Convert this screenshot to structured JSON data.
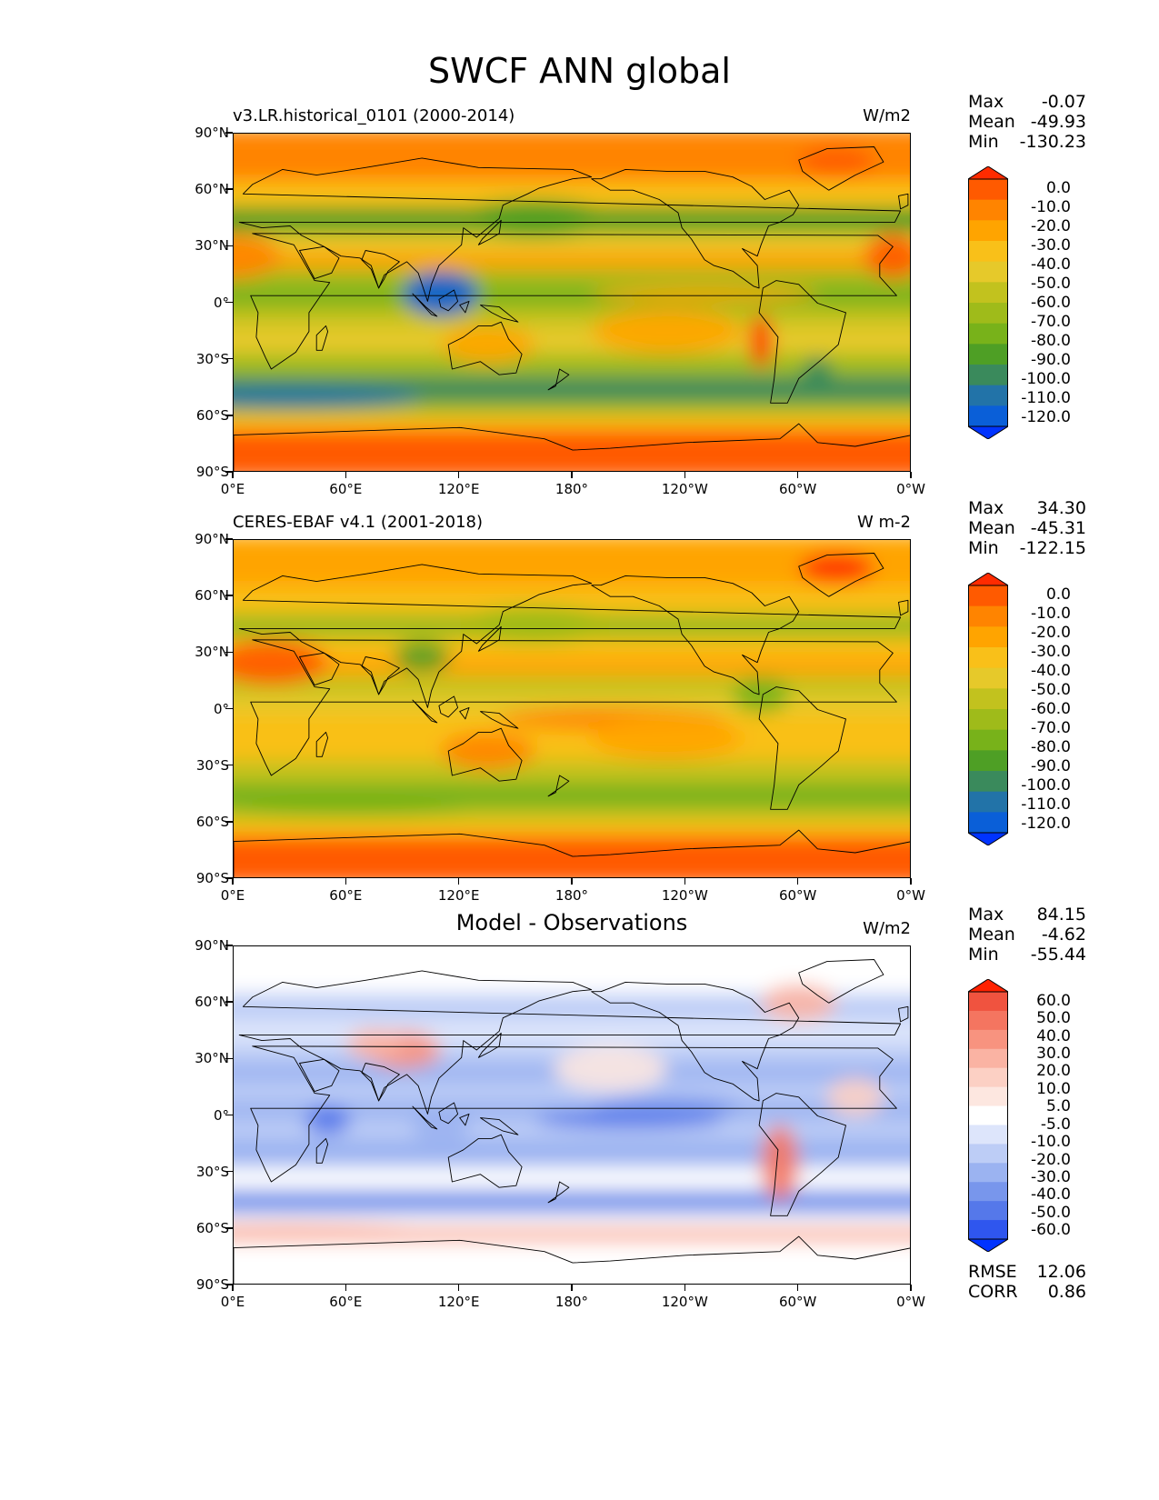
{
  "figure_title": "SWCF ANN global",
  "lat_ticks": [
    "90°N",
    "60°N",
    "30°N",
    "0°",
    "30°S",
    "60°S",
    "90°S"
  ],
  "lon_ticks": [
    "0°E",
    "60°E",
    "120°E",
    "180°",
    "120°W",
    "60°W",
    "0°W"
  ],
  "panels": [
    {
      "title_left": "v3.LR.historical_0101 (2000-2014)",
      "title_center": "",
      "units": "W/m2",
      "stats": [
        {
          "label": "Max",
          "value": "-0.07"
        },
        {
          "label": "Mean",
          "value": "-49.93"
        },
        {
          "label": "Min",
          "value": "-130.23"
        }
      ],
      "colorbar_levels": [
        "0.0",
        "-10.0",
        "-20.0",
        "-30.0",
        "-40.0",
        "-50.0",
        "-60.0",
        "-70.0",
        "-80.0",
        "-90.0",
        "-100.0",
        "-110.0",
        "-120.0"
      ],
      "colorbar_colors": [
        "#ff2b00",
        "#ff5a00",
        "#ff8400",
        "#ffa400",
        "#f9c019",
        "#e6c92a",
        "#c2c21e",
        "#9fbb1a",
        "#78b21a",
        "#4e9f25",
        "#3a8a5c",
        "#2273a8",
        "#0a5fd8",
        "#0033ff"
      ]
    },
    {
      "title_left": "CERES-EBAF v4.1 (2001-2018)",
      "title_center": "",
      "units": "W m-2",
      "stats": [
        {
          "label": "Max",
          "value": "34.30"
        },
        {
          "label": "Mean",
          "value": "-45.31"
        },
        {
          "label": "Min",
          "value": "-122.15"
        }
      ],
      "colorbar_levels": [
        "0.0",
        "-10.0",
        "-20.0",
        "-30.0",
        "-40.0",
        "-50.0",
        "-60.0",
        "-70.0",
        "-80.0",
        "-90.0",
        "-100.0",
        "-110.0",
        "-120.0"
      ],
      "colorbar_colors": [
        "#ff2b00",
        "#ff5a00",
        "#ff8400",
        "#ffa400",
        "#f9c019",
        "#e6c92a",
        "#c2c21e",
        "#9fbb1a",
        "#78b21a",
        "#4e9f25",
        "#3a8a5c",
        "#2273a8",
        "#0a5fd8",
        "#0033ff"
      ]
    },
    {
      "title_left": "",
      "title_center": "Model - Observations",
      "units": "W/m2",
      "stats": [
        {
          "label": "Max",
          "value": "84.15"
        },
        {
          "label": "Mean",
          "value": "-4.62"
        },
        {
          "label": "Min",
          "value": "-55.44"
        }
      ],
      "extra_stats": [
        {
          "label": "RMSE",
          "value": "12.06"
        },
        {
          "label": "CORR",
          "value": "0.86"
        }
      ],
      "colorbar_levels": [
        "60.0",
        "50.0",
        "40.0",
        "30.0",
        "20.0",
        "10.0",
        "5.0",
        "-5.0",
        "-10.0",
        "-20.0",
        "-30.0",
        "-40.0",
        "-50.0",
        "-60.0"
      ],
      "colorbar_colors": [
        "#ff2200",
        "#f0533f",
        "#f47560",
        "#f8937f",
        "#fab3a3",
        "#fcd0c4",
        "#fde7e0",
        "#ffffff",
        "#dde5fb",
        "#bdcdf6",
        "#9bb3f1",
        "#7896ec",
        "#5578ea",
        "#2f56ee",
        "#0033ff"
      ]
    }
  ]
}
